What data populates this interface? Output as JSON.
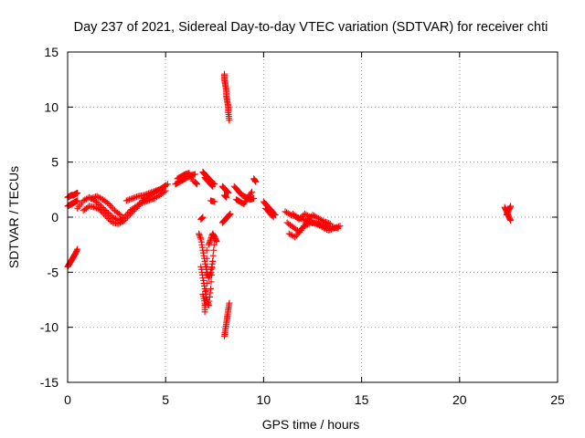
{
  "chart_data": {
    "type": "scatter",
    "title": "Day 237 of 2021, Sidereal Day-to-day VTEC variation (SDTVAR) for receiver chti",
    "xlabel": "GPS time / hours",
    "ylabel": "SDTVAR / TECUs",
    "xlim": [
      0,
      25
    ],
    "ylim": [
      -15,
      15
    ],
    "x_ticks": [
      0,
      5,
      10,
      15,
      20,
      25
    ],
    "y_ticks": [
      -15,
      -10,
      -5,
      0,
      5,
      10,
      15
    ],
    "x_tick_labels": [
      "0",
      "5",
      "10",
      "15",
      "20",
      "25"
    ],
    "y_tick_labels": [
      "-15",
      "-10",
      "-5",
      "0",
      "5",
      "10",
      "15"
    ],
    "grid": true,
    "marker": "plus",
    "series": [
      {
        "name": "SDTVAR",
        "color": "#ff0000",
        "segments": [
          {
            "x": [
              0.0,
              0.1,
              0.2,
              0.3,
              0.4,
              0.5
            ],
            "y": [
              1.8,
              1.9,
              2.0,
              2.0,
              2.1,
              2.2
            ]
          },
          {
            "x": [
              0.0,
              0.1,
              0.2,
              0.3,
              0.4,
              0.5
            ],
            "y": [
              1.0,
              1.1,
              1.2,
              1.3,
              1.4,
              1.5
            ]
          },
          {
            "x": [
              0.0,
              0.1,
              0.2,
              0.3,
              0.4,
              0.5
            ],
            "y": [
              -4.5,
              -4.2,
              -3.9,
              -3.6,
              -3.3,
              -2.9
            ]
          },
          {
            "x": [
              0.5,
              0.8,
              1.1,
              1.4,
              1.7,
              2.0,
              2.3,
              2.6,
              2.9,
              3.2,
              3.5,
              3.8,
              4.1,
              4.4,
              4.7,
              5.0
            ],
            "y": [
              0.8,
              1.5,
              1.8,
              1.5,
              1.0,
              0.5,
              0.0,
              -0.3,
              0.0,
              0.6,
              1.0,
              1.3,
              1.5,
              1.7,
              2.0,
              2.4
            ]
          },
          {
            "x": [
              0.8,
              1.1,
              1.4,
              1.7,
              2.0,
              2.3,
              2.6,
              2.9,
              3.2,
              3.5,
              3.8,
              4.1,
              4.4,
              4.7,
              5.0
            ],
            "y": [
              0.6,
              1.0,
              0.9,
              0.6,
              0.0,
              -0.5,
              -0.6,
              -0.3,
              0.3,
              0.8,
              1.5,
              1.8,
              2.2,
              2.5,
              2.9
            ]
          },
          {
            "x": [
              1.2,
              1.5,
              1.8,
              2.1,
              2.4,
              2.7
            ],
            "y": [
              1.7,
              1.9,
              1.6,
              1.2,
              0.6,
              0.2
            ]
          },
          {
            "x": [
              3.0,
              3.3,
              3.6,
              3.9,
              4.2,
              4.5,
              4.8,
              5.1
            ],
            "y": [
              1.5,
              1.7,
              1.9,
              2.0,
              2.2,
              2.4,
              2.6,
              3.0
            ]
          },
          {
            "x": [
              5.5,
              5.7,
              5.9,
              6.1,
              6.3,
              6.5
            ],
            "y": [
              3.0,
              3.2,
              3.4,
              3.6,
              3.8,
              3.9
            ]
          },
          {
            "x": [
              5.6,
              5.8,
              6.0,
              6.2,
              6.4
            ],
            "y": [
              3.5,
              3.7,
              3.9,
              4.0,
              3.3
            ]
          },
          {
            "x": [
              6.5,
              6.6
            ],
            "y": [
              3.2,
              3.0
            ]
          },
          {
            "x": [
              6.9,
              7.0,
              7.1,
              7.2,
              7.3,
              7.4,
              7.5
            ],
            "y": [
              4.1,
              3.9,
              3.7,
              3.5,
              3.3,
              3.1,
              3.0
            ]
          },
          {
            "x": [
              7.0,
              7.1,
              7.2,
              7.3,
              7.4
            ],
            "y": [
              3.6,
              3.4,
              3.2,
              3.0,
              2.8
            ]
          },
          {
            "x": [
              7.3,
              7.5
            ],
            "y": [
              1.5,
              1.4
            ]
          },
          {
            "x": [
              7.9,
              8.0,
              8.1,
              8.2
            ],
            "y": [
              2.8,
              2.6,
              2.4,
              2.2
            ]
          },
          {
            "x": [
              8.0,
              8.1
            ],
            "y": [
              2.0,
              1.8
            ]
          },
          {
            "x": [
              7.9,
              8.0,
              8.1,
              8.2,
              8.3
            ],
            "y": [
              -0.5,
              -0.3,
              -0.1,
              0.1,
              0.3
            ]
          },
          {
            "x": [
              6.7,
              6.8,
              6.9,
              7.0,
              7.1,
              7.2,
              7.3,
              7.4,
              7.5
            ],
            "y": [
              -1.5,
              -2.0,
              -3.0,
              -4.0,
              -5.0,
              -5.5,
              -5.0,
              -4.0,
              -2.0
            ]
          },
          {
            "x": [
              6.8,
              6.9,
              7.0,
              7.1,
              7.2,
              7.3,
              7.4
            ],
            "y": [
              -4.5,
              -5.5,
              -6.5,
              -7.5,
              -8.0,
              -6.5,
              -4.0
            ]
          },
          {
            "x": [
              6.9,
              7.0,
              7.0,
              7.1,
              7.1
            ],
            "y": [
              -7.0,
              -7.8,
              -8.6,
              -6.0,
              -3.0
            ]
          },
          {
            "x": [
              7.2,
              7.3,
              7.4,
              7.5,
              7.6
            ],
            "y": [
              -2.5,
              -2.0,
              -1.5,
              -1.8,
              -2.2
            ]
          },
          {
            "x": [
              6.8,
              6.9
            ],
            "y": [
              -0.2,
              0.0
            ]
          },
          {
            "x": [
              8.0,
              8.0,
              8.05,
              8.1,
              8.1,
              8.15,
              8.2,
              8.2,
              8.25
            ],
            "y": [
              13.0,
              12.5,
              12.0,
              11.5,
              11.0,
              10.5,
              10.0,
              9.5,
              8.8
            ]
          },
          {
            "x": [
              8.0,
              8.05,
              8.1,
              8.15,
              8.2,
              8.25
            ],
            "y": [
              -10.8,
              -10.2,
              -9.6,
              -9.0,
              -8.4,
              -7.8
            ]
          },
          {
            "x": [
              8.5,
              8.7,
              8.9,
              9.1,
              9.3,
              9.5
            ],
            "y": [
              2.8,
              2.4,
              2.0,
              1.8,
              1.6,
              1.7
            ]
          },
          {
            "x": [
              8.6,
              8.8,
              9.0,
              9.2,
              9.4
            ],
            "y": [
              1.6,
              1.4,
              1.2,
              1.8,
              2.3
            ]
          },
          {
            "x": [
              9.5,
              9.6
            ],
            "y": [
              3.5,
              3.2
            ]
          },
          {
            "x": [
              10.0,
              10.2,
              10.4,
              10.6
            ],
            "y": [
              1.4,
              1.0,
              0.6,
              0.2
            ]
          },
          {
            "x": [
              10.1,
              10.3,
              10.5
            ],
            "y": [
              0.8,
              0.4,
              0.0
            ]
          },
          {
            "x": [
              11.1,
              11.4,
              11.7,
              12.0,
              12.3,
              12.6,
              12.9,
              13.2,
              13.5,
              13.8
            ],
            "y": [
              0.5,
              0.2,
              0.0,
              -0.2,
              -0.4,
              -0.5,
              -0.7,
              -0.8,
              -0.9,
              -1.0
            ]
          },
          {
            "x": [
              11.2,
              11.5,
              11.8,
              12.1,
              12.4,
              12.7,
              13.0,
              13.3,
              13.6,
              13.9
            ],
            "y": [
              -0.5,
              -0.9,
              -1.3,
              -0.8,
              -0.5,
              -0.6,
              -0.9,
              -1.2,
              -1.0,
              -0.8
            ]
          },
          {
            "x": [
              11.3,
              11.6,
              11.9,
              12.2,
              12.5,
              12.8,
              13.1,
              13.4
            ],
            "y": [
              -1.5,
              -1.8,
              -1.2,
              -0.4,
              0.2,
              -0.1,
              -0.4,
              -0.6
            ]
          },
          {
            "x": [
              11.5,
              11.8,
              12.1,
              12.4
            ],
            "y": [
              0.3,
              -0.2,
              0.3,
              0.0
            ]
          },
          {
            "x": [
              22.3,
              22.4,
              22.5,
              22.6
            ],
            "y": [
              0.9,
              0.5,
              0.1,
              -0.3
            ]
          },
          {
            "x": [
              22.4,
              22.5,
              22.6
            ],
            "y": [
              0.2,
              0.6,
              1.0
            ]
          }
        ]
      }
    ]
  }
}
